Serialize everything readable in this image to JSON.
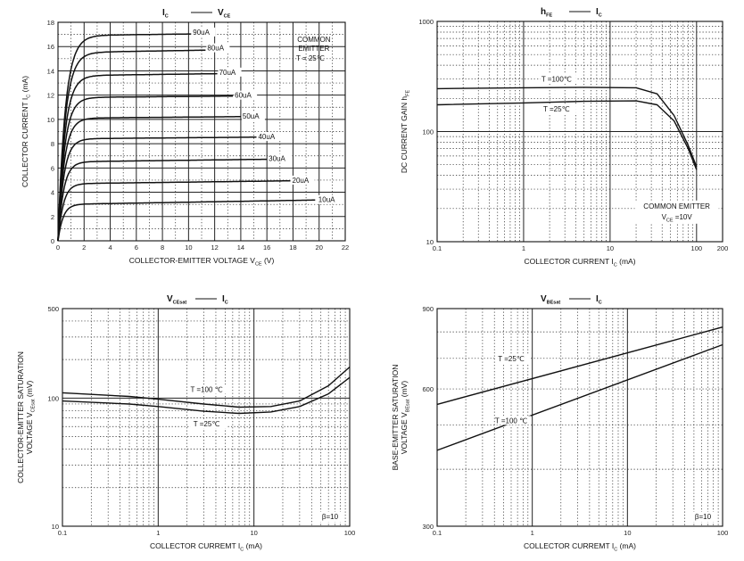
{
  "chart_data": [
    {
      "id": "ic-vce",
      "type": "line",
      "title": "I  — V",
      "title_parts": {
        "left": "I",
        "left_sub": "C",
        "right": "V",
        "right_sub": "CE"
      },
      "xlabel": "COLLECTOR-EMITTER VOLTAGE  V",
      "xlabel_sub": "CE",
      "xlabel_unit": "(V)",
      "ylabel": "COLLECTOR CURRENT  I",
      "ylabel_sub": "C",
      "ylabel_unit": "(mA)",
      "xscale": "linear",
      "yscale": "linear",
      "xlim": [
        0,
        22
      ],
      "ylim": [
        0,
        18
      ],
      "xticks": [
        0,
        2,
        4,
        6,
        8,
        10,
        12,
        14,
        16,
        18,
        20,
        22
      ],
      "yticks": [
        0,
        2,
        4,
        6,
        8,
        10,
        12,
        14,
        16,
        18
      ],
      "grid": true,
      "annotations": [
        "COMMON",
        "EMITTER",
        "T = 25℃"
      ],
      "series": [
        {
          "name": "10uA",
          "sat": 3.0,
          "end": 3.4,
          "label_x": 19.8
        },
        {
          "name": "20uA",
          "sat": 4.7,
          "end": 5.0,
          "label_x": 17.8
        },
        {
          "name": "30uA",
          "sat": 6.5,
          "end": 6.8,
          "label_x": 16.0
        },
        {
          "name": "40uA",
          "sat": 8.4,
          "end": 8.6,
          "label_x": 15.2
        },
        {
          "name": "50uA",
          "sat": 10.1,
          "end": 10.3,
          "label_x": 14.0
        },
        {
          "name": "60uA",
          "sat": 11.8,
          "end": 12.0,
          "label_x": 13.4
        },
        {
          "name": "70uA",
          "sat": 13.6,
          "end": 13.9,
          "label_x": 12.2
        },
        {
          "name": "80uA",
          "sat": 15.5,
          "end": 15.9,
          "label_x": 11.3
        },
        {
          "name": "90uA",
          "sat": 16.9,
          "end": 17.2,
          "label_x": 10.2
        }
      ]
    },
    {
      "id": "hfe-ic",
      "type": "line",
      "title": "h  — I",
      "title_parts": {
        "left": "h",
        "left_sub": "FE",
        "right": "I",
        "right_sub": "C"
      },
      "xlabel": "COLLECTOR CURRENT  I",
      "xlabel_sub": "C",
      "xlabel_unit": "(mA)",
      "ylabel": "DC CURRENT GAIN  h",
      "ylabel_sub": "FE",
      "xscale": "log",
      "yscale": "log",
      "xlim": [
        0.1,
        200
      ],
      "ylim": [
        10,
        1000
      ],
      "xticks": [
        0.1,
        1,
        10,
        100,
        200
      ],
      "xtick_labels": [
        "0.1",
        "1",
        "10",
        "100",
        "200"
      ],
      "yticks": [
        10,
        100,
        1000
      ],
      "ytick_labels": [
        "10",
        "100",
        "1000"
      ],
      "grid": true,
      "annotations": [
        "COMMON EMITTER",
        "V  =10V"
      ],
      "annotation_sub": "CE",
      "series": [
        {
          "name": "T =100℃",
          "x": [
            0.1,
            1,
            5,
            20,
            35,
            55,
            80,
            100
          ],
          "y": [
            245,
            250,
            252,
            250,
            220,
            140,
            75,
            48
          ]
        },
        {
          "name": "T =25℃",
          "x": [
            0.1,
            1,
            5,
            20,
            35,
            55,
            80,
            100
          ],
          "y": [
            175,
            182,
            188,
            190,
            175,
            125,
            70,
            45
          ]
        }
      ]
    },
    {
      "id": "vcesat-ic",
      "type": "line",
      "title": "V  — I",
      "title_parts": {
        "left": "V",
        "left_sub": "CEsat",
        "right": "I",
        "right_sub": "C"
      },
      "xlabel": "COLLECTOR CURREMT  I",
      "xlabel_sub": "C",
      "xlabel_unit": "(mA)",
      "ylabel": "COLLECTOR-EMITTER SATURATION",
      "ylabel2": "VOLTAGE  V",
      "ylabel_sub": "CEsat",
      "ylabel_unit": "(mV)",
      "xscale": "log",
      "yscale": "log",
      "xlim": [
        0.1,
        100
      ],
      "ylim": [
        10,
        500
      ],
      "xticks": [
        0.1,
        1,
        10,
        100
      ],
      "xtick_labels": [
        "0.1",
        "1",
        "10",
        "100"
      ],
      "yticks": [
        10,
        100,
        500
      ],
      "ytick_labels": [
        "10",
        "100",
        "500"
      ],
      "grid": true,
      "annotations": [
        "β=10"
      ],
      "series": [
        {
          "name": "T =100 ℃",
          "x": [
            0.1,
            0.5,
            1,
            3,
            7,
            15,
            30,
            60,
            100
          ],
          "y": [
            110,
            103,
            98,
            90,
            85,
            86,
            95,
            125,
            175
          ]
        },
        {
          "name": "T =25℃",
          "x": [
            0.1,
            0.5,
            1,
            3,
            7,
            15,
            30,
            60,
            100
          ],
          "y": [
            95,
            90,
            86,
            79,
            76,
            78,
            86,
            108,
            145
          ]
        }
      ]
    },
    {
      "id": "vbesat-ic",
      "type": "line",
      "title": "V  — I",
      "title_parts": {
        "left": "V",
        "left_sub": "BEsat",
        "right": "I",
        "right_sub": "C"
      },
      "xlabel": "COLLECTOR CURREMT  I",
      "xlabel_sub": "C",
      "xlabel_unit": "(mA)",
      "ylabel": "BASE-EMITTER SATURATION",
      "ylabel2": "VOLTAGE  V",
      "ylabel_sub": "BEsat",
      "ylabel_unit": "(mV)",
      "xscale": "log",
      "yscale": "log",
      "xlim": [
        0.1,
        100
      ],
      "ylim": [
        300,
        900
      ],
      "xticks": [
        0.1,
        1,
        10,
        100
      ],
      "xtick_labels": [
        "0.1",
        "1",
        "10",
        "100"
      ],
      "yticks": [
        300,
        600,
        900
      ],
      "ytick_labels": [
        "300",
        "600",
        "900"
      ],
      "grid": true,
      "annotations": [
        "β=10"
      ],
      "series": [
        {
          "name": "T =25℃",
          "x": [
            0.1,
            100
          ],
          "y": [
            555,
            820
          ]
        },
        {
          "name": "T =100 ℃",
          "x": [
            0.1,
            100
          ],
          "y": [
            440,
            750
          ]
        }
      ]
    }
  ]
}
